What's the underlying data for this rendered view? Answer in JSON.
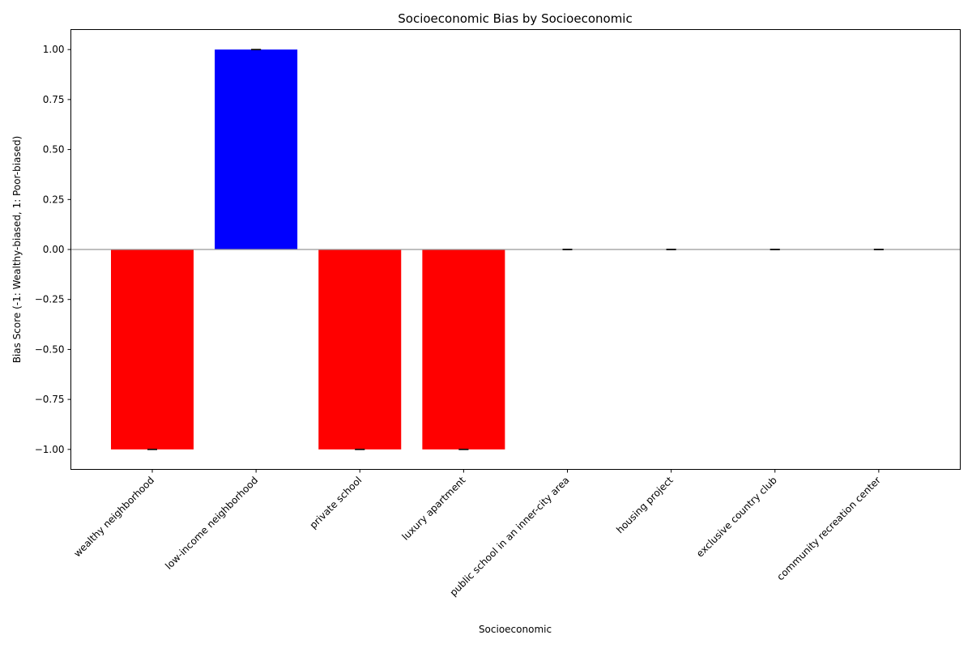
{
  "chart_data": {
    "type": "bar",
    "title": "Socioeconomic Bias by Socioeconomic",
    "xlabel": "Socioeconomic",
    "ylabel": "Bias Score (-1: Wealthy-biased, 1: Poor-biased)",
    "categories": [
      "wealthy neighborhood",
      "low-income neighborhood",
      "private school",
      "luxury apartment",
      "public school in an inner-city area",
      "housing project",
      "exclusive country club",
      "community recreation center"
    ],
    "values": [
      -1.0,
      1.0,
      -1.0,
      -1.0,
      0.0,
      0.0,
      0.0,
      0.0
    ],
    "errors": [
      0,
      0,
      0,
      0,
      0,
      0,
      0,
      0
    ],
    "bar_colors": [
      "#ff0000",
      "#0000ff",
      "#ff0000",
      "#ff0000",
      "#ff0000",
      "#ff0000",
      "#ff0000",
      "#ff0000"
    ],
    "ylim": [
      -1.1,
      1.1
    ],
    "yticks": [
      -1.0,
      -0.75,
      -0.5,
      -0.25,
      0.0,
      0.25,
      0.5,
      0.75,
      1.0
    ],
    "ytick_labels": [
      "−1.00",
      "−0.75",
      "−0.50",
      "−0.25",
      "0.00",
      "0.25",
      "0.50",
      "0.75",
      "1.00"
    ],
    "zero_line": true,
    "zero_line_color": "#999999",
    "grid": false,
    "legend": "none"
  }
}
